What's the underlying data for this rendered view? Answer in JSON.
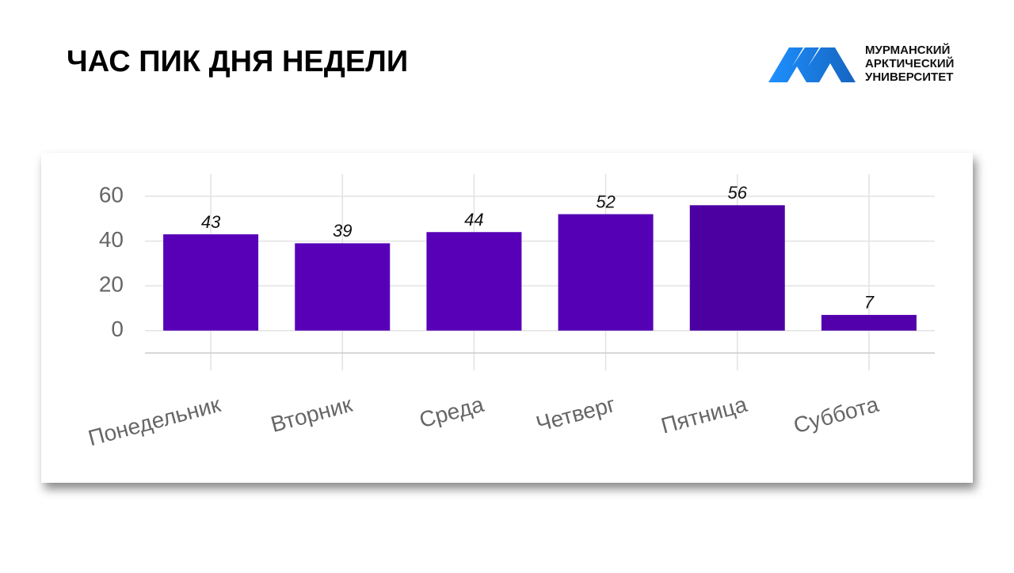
{
  "chart_data": {
    "type": "bar",
    "title": "ЧАС ПИК ДНЯ НЕДЕЛИ",
    "categories": [
      "Понедельник",
      "Вторник",
      "Среда",
      "Четверг",
      "Пятница",
      "Суббота"
    ],
    "values": [
      43,
      39,
      44,
      52,
      56,
      7
    ],
    "colors": [
      "#5800b8",
      "#5800b8",
      "#5800b8",
      "#5500b4",
      "#4c00a2",
      "#5200ac"
    ],
    "ylim": [
      -10,
      70
    ],
    "yticks": [
      0,
      20,
      40,
      60
    ],
    "grid": true
  },
  "logo": {
    "lines": [
      "МУРМАНСКИЙ",
      "АРКТИЧЕСКИЙ",
      "УНИВЕРСИТЕТ"
    ]
  }
}
